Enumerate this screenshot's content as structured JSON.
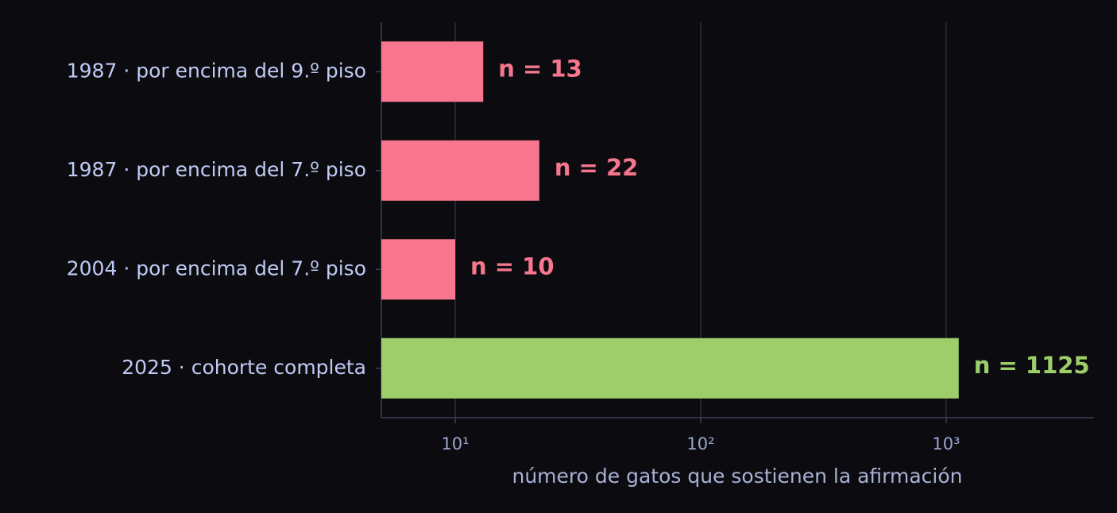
{
  "chart_data": {
    "type": "barh",
    "xlabel": "número de gatos que sostienen la afirmación",
    "categories": [
      "1987 · por encima del 9.º piso",
      "1987 · por encima del 7.º piso",
      "2004 · por encima del 7.º piso",
      "2025 · cohorte completa"
    ],
    "values": [
      13,
      22,
      10,
      1125
    ],
    "value_labels": [
      "n = 13",
      "n = 22",
      "n = 10",
      "n = 1125"
    ],
    "colors": [
      "#f7768e",
      "#f7768e",
      "#f7768e",
      "#9ece6a"
    ],
    "xscale": "log",
    "xlim": [
      5,
      4000
    ],
    "xticks": [
      {
        "value": 10,
        "label": "10¹"
      },
      {
        "value": 100,
        "label": "10²"
      },
      {
        "value": 1000,
        "label": "10³"
      }
    ],
    "grid": true
  }
}
